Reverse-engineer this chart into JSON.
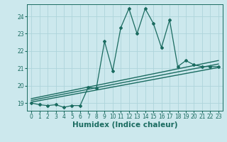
{
  "xlabel": "Humidex (Indice chaleur)",
  "bg_color": "#cce8ed",
  "grid_color": "#aed4db",
  "line_color": "#1a6b60",
  "xlim": [
    -0.5,
    23.5
  ],
  "ylim": [
    18.55,
    24.7
  ],
  "yticks": [
    19,
    20,
    21,
    22,
    23,
    24
  ],
  "xticks": [
    0,
    1,
    2,
    3,
    4,
    5,
    6,
    7,
    8,
    9,
    10,
    11,
    12,
    13,
    14,
    15,
    16,
    17,
    18,
    19,
    20,
    21,
    22,
    23
  ],
  "main_x": [
    0,
    1,
    2,
    3,
    4,
    5,
    6,
    7,
    8,
    9,
    10,
    11,
    12,
    13,
    14,
    15,
    16,
    17,
    18,
    19,
    20,
    21,
    22,
    23
  ],
  "main_y": [
    19.0,
    18.9,
    18.85,
    18.9,
    18.75,
    18.85,
    18.85,
    19.9,
    19.85,
    22.55,
    20.85,
    23.35,
    24.45,
    23.0,
    24.45,
    23.6,
    22.2,
    23.8,
    21.1,
    21.45,
    21.2,
    21.1,
    21.1,
    21.1
  ],
  "trend1_x": [
    0,
    23
  ],
  "trend1_y": [
    19.05,
    21.05
  ],
  "trend2_x": [
    0,
    23
  ],
  "trend2_y": [
    19.15,
    21.25
  ],
  "trend3_x": [
    0,
    23
  ],
  "trend3_y": [
    19.25,
    21.45
  ],
  "tick_fontsize": 5.5,
  "xlabel_fontsize": 7.5
}
